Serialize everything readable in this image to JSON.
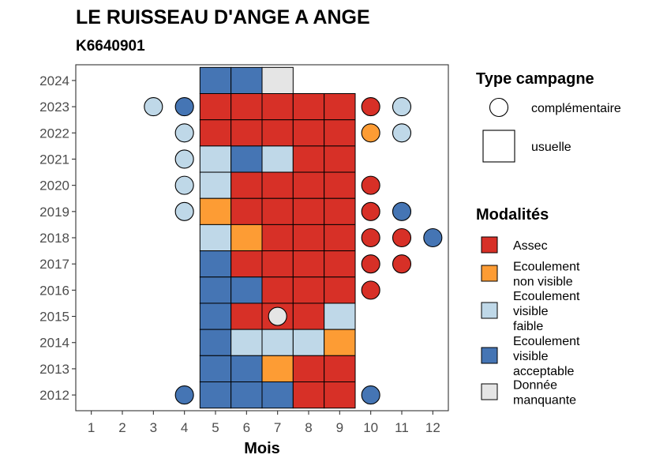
{
  "chart_data": {
    "type": "heatmap",
    "title": "LE RUISSEAU D'ANGE A ANGE",
    "subtitle": "K6640901",
    "xlabel": "Mois",
    "ylabel": "",
    "x_ticks": [
      "1",
      "2",
      "3",
      "4",
      "5",
      "6",
      "7",
      "8",
      "9",
      "10",
      "11",
      "12"
    ],
    "y_ticks": [
      "2012",
      "2013",
      "2014",
      "2015",
      "2016",
      "2017",
      "2018",
      "2019",
      "2020",
      "2021",
      "2022",
      "2023",
      "2024"
    ],
    "xlim": [
      0.5,
      12.5
    ],
    "ylim": [
      2011.4,
      2024.6
    ],
    "grid": false,
    "legend_placement": "right",
    "legend_shape_title": "Type campagne",
    "legend_shapes": [
      {
        "key": "complementaire",
        "label": "complémentaire",
        "shape": "circle"
      },
      {
        "key": "usuelle",
        "label": "usuelle",
        "shape": "square"
      }
    ],
    "legend_color_title": "Modalités",
    "categories": [
      {
        "key": "assec",
        "label_lines": [
          "Assec"
        ],
        "color": "#d73027"
      },
      {
        "key": "nonvisible",
        "label_lines": [
          "Ecoulement",
          "non visible"
        ],
        "color": "#fd9c34"
      },
      {
        "key": "faible",
        "label_lines": [
          "Ecoulement",
          "visible",
          "faible"
        ],
        "color": "#bfd8e8"
      },
      {
        "key": "acceptable",
        "label_lines": [
          "Ecoulement",
          "visible",
          "acceptable"
        ],
        "color": "#4575b4"
      },
      {
        "key": "manquante",
        "label_lines": [
          "Donnée",
          "manquante"
        ],
        "color": "#e5e5e5"
      }
    ],
    "usual_observations": [
      {
        "year": 2024,
        "month": 5,
        "cat": "acceptable"
      },
      {
        "year": 2024,
        "month": 6,
        "cat": "acceptable"
      },
      {
        "year": 2024,
        "month": 7,
        "cat": "manquante"
      },
      {
        "year": 2023,
        "month": 5,
        "cat": "assec"
      },
      {
        "year": 2023,
        "month": 6,
        "cat": "assec"
      },
      {
        "year": 2023,
        "month": 7,
        "cat": "assec"
      },
      {
        "year": 2023,
        "month": 8,
        "cat": "assec"
      },
      {
        "year": 2023,
        "month": 9,
        "cat": "assec"
      },
      {
        "year": 2022,
        "month": 5,
        "cat": "assec"
      },
      {
        "year": 2022,
        "month": 6,
        "cat": "assec"
      },
      {
        "year": 2022,
        "month": 7,
        "cat": "assec"
      },
      {
        "year": 2022,
        "month": 8,
        "cat": "assec"
      },
      {
        "year": 2022,
        "month": 9,
        "cat": "assec"
      },
      {
        "year": 2021,
        "month": 5,
        "cat": "faible"
      },
      {
        "year": 2021,
        "month": 6,
        "cat": "acceptable"
      },
      {
        "year": 2021,
        "month": 7,
        "cat": "faible"
      },
      {
        "year": 2021,
        "month": 8,
        "cat": "assec"
      },
      {
        "year": 2021,
        "month": 9,
        "cat": "assec"
      },
      {
        "year": 2020,
        "month": 5,
        "cat": "faible"
      },
      {
        "year": 2020,
        "month": 6,
        "cat": "assec"
      },
      {
        "year": 2020,
        "month": 7,
        "cat": "assec"
      },
      {
        "year": 2020,
        "month": 8,
        "cat": "assec"
      },
      {
        "year": 2020,
        "month": 9,
        "cat": "assec"
      },
      {
        "year": 2019,
        "month": 5,
        "cat": "nonvisible"
      },
      {
        "year": 2019,
        "month": 6,
        "cat": "assec"
      },
      {
        "year": 2019,
        "month": 7,
        "cat": "assec"
      },
      {
        "year": 2019,
        "month": 8,
        "cat": "assec"
      },
      {
        "year": 2019,
        "month": 9,
        "cat": "assec"
      },
      {
        "year": 2018,
        "month": 5,
        "cat": "faible"
      },
      {
        "year": 2018,
        "month": 6,
        "cat": "nonvisible"
      },
      {
        "year": 2018,
        "month": 7,
        "cat": "assec"
      },
      {
        "year": 2018,
        "month": 8,
        "cat": "assec"
      },
      {
        "year": 2018,
        "month": 9,
        "cat": "assec"
      },
      {
        "year": 2017,
        "month": 5,
        "cat": "acceptable"
      },
      {
        "year": 2017,
        "month": 6,
        "cat": "assec"
      },
      {
        "year": 2017,
        "month": 7,
        "cat": "assec"
      },
      {
        "year": 2017,
        "month": 8,
        "cat": "assec"
      },
      {
        "year": 2017,
        "month": 9,
        "cat": "assec"
      },
      {
        "year": 2016,
        "month": 5,
        "cat": "acceptable"
      },
      {
        "year": 2016,
        "month": 6,
        "cat": "acceptable"
      },
      {
        "year": 2016,
        "month": 7,
        "cat": "assec"
      },
      {
        "year": 2016,
        "month": 8,
        "cat": "assec"
      },
      {
        "year": 2016,
        "month": 9,
        "cat": "assec"
      },
      {
        "year": 2015,
        "month": 5,
        "cat": "acceptable"
      },
      {
        "year": 2015,
        "month": 6,
        "cat": "assec"
      },
      {
        "year": 2015,
        "month": 7,
        "cat": "assec"
      },
      {
        "year": 2015,
        "month": 8,
        "cat": "assec"
      },
      {
        "year": 2015,
        "month": 9,
        "cat": "faible"
      },
      {
        "year": 2014,
        "month": 5,
        "cat": "acceptable"
      },
      {
        "year": 2014,
        "month": 6,
        "cat": "faible"
      },
      {
        "year": 2014,
        "month": 7,
        "cat": "faible"
      },
      {
        "year": 2014,
        "month": 8,
        "cat": "faible"
      },
      {
        "year": 2014,
        "month": 9,
        "cat": "nonvisible"
      },
      {
        "year": 2013,
        "month": 5,
        "cat": "acceptable"
      },
      {
        "year": 2013,
        "month": 6,
        "cat": "acceptable"
      },
      {
        "year": 2013,
        "month": 7,
        "cat": "nonvisible"
      },
      {
        "year": 2013,
        "month": 8,
        "cat": "assec"
      },
      {
        "year": 2013,
        "month": 9,
        "cat": "assec"
      },
      {
        "year": 2012,
        "month": 5,
        "cat": "acceptable"
      },
      {
        "year": 2012,
        "month": 6,
        "cat": "acceptable"
      },
      {
        "year": 2012,
        "month": 7,
        "cat": "acceptable"
      },
      {
        "year": 2012,
        "month": 8,
        "cat": "assec"
      },
      {
        "year": 2012,
        "month": 9,
        "cat": "assec"
      }
    ],
    "complementary_observations": [
      {
        "year": 2023,
        "month": 3,
        "cat": "faible"
      },
      {
        "year": 2023,
        "month": 4,
        "cat": "acceptable"
      },
      {
        "year": 2023,
        "month": 10,
        "cat": "assec"
      },
      {
        "year": 2023,
        "month": 11,
        "cat": "faible"
      },
      {
        "year": 2022,
        "month": 4,
        "cat": "faible"
      },
      {
        "year": 2022,
        "month": 10,
        "cat": "nonvisible"
      },
      {
        "year": 2022,
        "month": 11,
        "cat": "faible"
      },
      {
        "year": 2021,
        "month": 4,
        "cat": "faible"
      },
      {
        "year": 2020,
        "month": 4,
        "cat": "faible"
      },
      {
        "year": 2020,
        "month": 10,
        "cat": "assec"
      },
      {
        "year": 2019,
        "month": 4,
        "cat": "faible"
      },
      {
        "year": 2019,
        "month": 10,
        "cat": "assec"
      },
      {
        "year": 2019,
        "month": 11,
        "cat": "acceptable"
      },
      {
        "year": 2018,
        "month": 10,
        "cat": "assec"
      },
      {
        "year": 2018,
        "month": 11,
        "cat": "assec"
      },
      {
        "year": 2018,
        "month": 12,
        "cat": "acceptable"
      },
      {
        "year": 2017,
        "month": 10,
        "cat": "assec"
      },
      {
        "year": 2017,
        "month": 11,
        "cat": "assec"
      },
      {
        "year": 2016,
        "month": 10,
        "cat": "assec"
      },
      {
        "year": 2015,
        "month": 7,
        "cat": "manquante"
      },
      {
        "year": 2012,
        "month": 4,
        "cat": "acceptable"
      },
      {
        "year": 2012,
        "month": 10,
        "cat": "acceptable"
      }
    ]
  }
}
